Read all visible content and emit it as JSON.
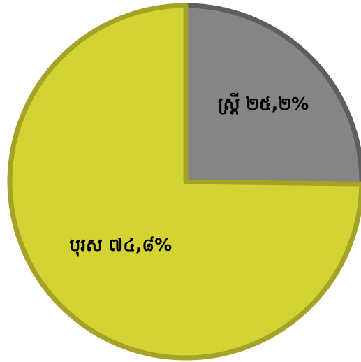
{
  "chart_data": {
    "type": "pie",
    "title": "",
    "slices": [
      {
        "label": "ស្ត្រី",
        "value": 25.2,
        "display": "ស្ត្រី ២៥,២%",
        "color": "#858585",
        "border": "#5e5e5e"
      },
      {
        "label": "បុរស",
        "value": 74.8,
        "display": "បុរស ៧៤,៨%",
        "color": "#d4d334",
        "border": "#a4a327"
      }
    ],
    "start_angle": "12 o'clock",
    "direction": "clockwise",
    "legend": "none"
  }
}
